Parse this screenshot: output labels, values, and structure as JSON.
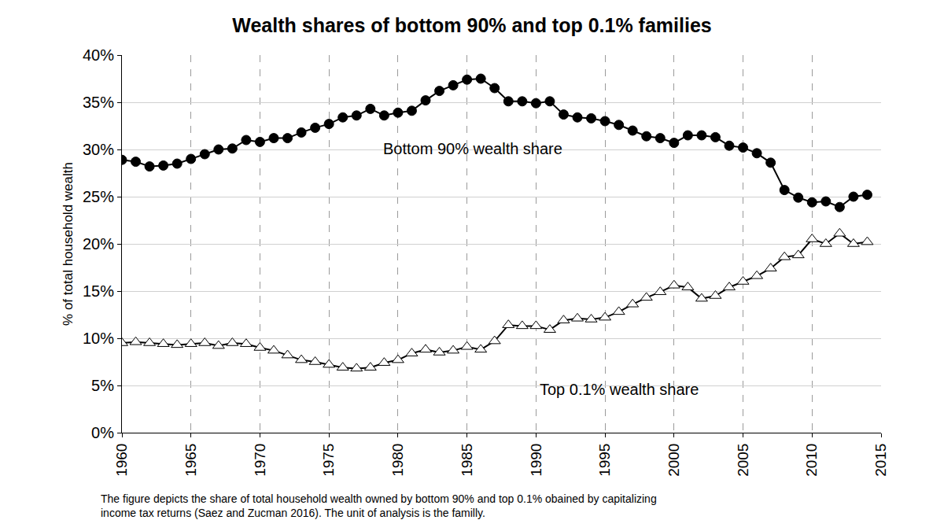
{
  "chart_data": {
    "type": "line",
    "title": "Wealth shares of bottom 90% and top 0.1% families",
    "y_label": "% of total household wealth",
    "caption": [
      "The figure depicts the share of total household wealth owned by bottom 90% and top 0.1% obained by capitalizing",
      "income tax returns (Saez and Zucman 2016). The unit of analysis is the familly."
    ],
    "x": [
      1960,
      1961,
      1962,
      1963,
      1964,
      1965,
      1966,
      1967,
      1968,
      1969,
      1970,
      1971,
      1972,
      1973,
      1974,
      1975,
      1976,
      1977,
      1978,
      1979,
      1980,
      1981,
      1982,
      1983,
      1984,
      1985,
      1986,
      1987,
      1988,
      1989,
      1990,
      1991,
      1992,
      1993,
      1994,
      1995,
      1996,
      1997,
      1998,
      1999,
      2000,
      2001,
      2002,
      2003,
      2004,
      2005,
      2006,
      2007,
      2008,
      2009,
      2010,
      2011,
      2012,
      2013,
      2014
    ],
    "series": [
      {
        "name": "Bottom 90% wealth share",
        "color": "#000000",
        "marker": "circle",
        "values": [
          28.9,
          28.7,
          28.2,
          28.3,
          28.5,
          29.0,
          29.5,
          30.0,
          30.1,
          31.0,
          30.8,
          31.2,
          31.2,
          31.8,
          32.3,
          32.7,
          33.4,
          33.6,
          34.3,
          33.6,
          33.9,
          34.1,
          35.2,
          36.2,
          36.8,
          37.4,
          37.5,
          36.5,
          35.1,
          35.1,
          34.9,
          35.1,
          33.7,
          33.4,
          33.3,
          33.0,
          32.6,
          32.0,
          31.4,
          31.2,
          30.7,
          31.5,
          31.5,
          31.3,
          30.4,
          30.2,
          29.6,
          28.6,
          25.7,
          24.9,
          24.4,
          24.5,
          23.9,
          25.0,
          25.2
        ]
      },
      {
        "name": "Top 0.1% wealth share",
        "color": "#000000",
        "marker": "triangle-up",
        "values": [
          9.5,
          9.6,
          9.5,
          9.4,
          9.3,
          9.4,
          9.5,
          9.2,
          9.5,
          9.4,
          9.0,
          8.7,
          8.2,
          7.7,
          7.5,
          7.2,
          6.9,
          6.8,
          6.9,
          7.4,
          7.7,
          8.4,
          8.8,
          8.5,
          8.7,
          9.1,
          8.8,
          9.7,
          11.4,
          11.3,
          11.3,
          10.9,
          11.9,
          12.1,
          12.0,
          12.2,
          12.8,
          13.6,
          14.3,
          14.9,
          15.6,
          15.4,
          14.2,
          14.5,
          15.4,
          16.0,
          16.6,
          17.4,
          18.6,
          18.8,
          20.5,
          20.0,
          21.1,
          20.0,
          20.2
        ]
      }
    ],
    "xlim": [
      1960,
      2015
    ],
    "xticks": [
      1960,
      1965,
      1970,
      1975,
      1980,
      1985,
      1990,
      1995,
      2000,
      2005,
      2010,
      2015
    ],
    "ylim": [
      0,
      40
    ],
    "yticks": [
      {
        "value": 0,
        "label": "0%"
      },
      {
        "value": 5,
        "label": "5%"
      },
      {
        "value": 10,
        "label": "10%"
      },
      {
        "value": 15,
        "label": "15%"
      },
      {
        "value": 20,
        "label": "20%"
      },
      {
        "value": 25,
        "label": "25%"
      },
      {
        "value": 30,
        "label": "30%"
      },
      {
        "value": 35,
        "label": "35%"
      },
      {
        "value": 40,
        "label": "40%"
      }
    ],
    "grid": true,
    "legend": false
  }
}
